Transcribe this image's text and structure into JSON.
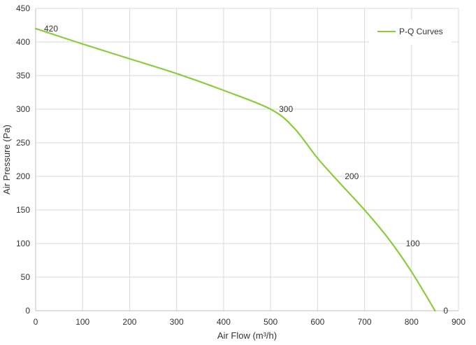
{
  "chart_data": {
    "type": "line",
    "title": "",
    "xlabel": "Air Flow  (m³/h)",
    "ylabel": "Air Pressure  (Pa)",
    "xlim": [
      0,
      900
    ],
    "ylim": [
      0,
      450
    ],
    "x_ticks": [
      0,
      100,
      200,
      300,
      400,
      500,
      600,
      700,
      800,
      900
    ],
    "y_ticks": [
      0,
      50,
      100,
      150,
      200,
      250,
      300,
      350,
      400,
      450
    ],
    "grid": true,
    "legend_position": "top-right",
    "series": [
      {
        "name": "P-Q Curves",
        "color": "#8ccc3c",
        "x": [
          0,
          100,
          200,
          300,
          400,
          500,
          550,
          600,
          650,
          700,
          750,
          800,
          850
        ],
        "y": [
          420,
          397,
          375,
          353,
          328,
          300,
          272,
          227,
          188,
          150,
          108,
          58,
          0
        ]
      }
    ],
    "data_labels": [
      {
        "text": "420",
        "x": 0,
        "y": 420
      },
      {
        "text": "300",
        "x": 500,
        "y": 300
      },
      {
        "text": "200",
        "x": 640,
        "y": 200
      },
      {
        "text": "100",
        "x": 770,
        "y": 100
      },
      {
        "text": "0",
        "x": 850,
        "y": 0
      }
    ]
  }
}
